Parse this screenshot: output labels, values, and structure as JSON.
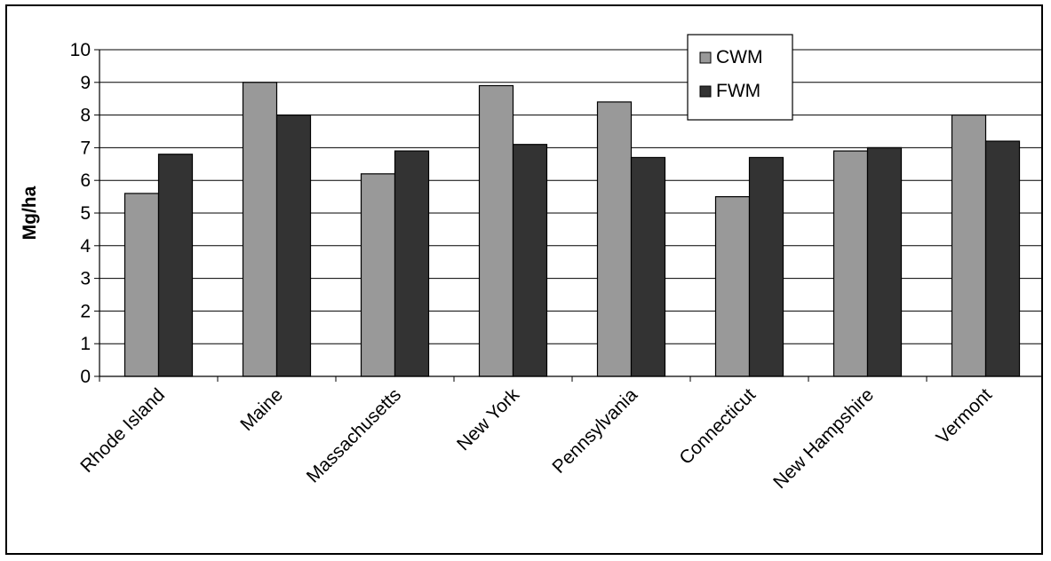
{
  "chart_data": {
    "type": "bar",
    "categories": [
      "Rhode Island",
      "Maine",
      "Massachusetts",
      "New York",
      "Pennsylvania",
      "Connecticut",
      "New Hampshire",
      "Vermont"
    ],
    "series": [
      {
        "name": "CWM",
        "values": [
          5.6,
          9.0,
          6.2,
          8.9,
          8.4,
          5.5,
          6.9,
          8.0
        ],
        "color": "#999999"
      },
      {
        "name": "FWM",
        "values": [
          6.8,
          8.0,
          6.9,
          7.1,
          6.7,
          6.7,
          7.0,
          7.2
        ],
        "color": "#333333"
      }
    ],
    "title": "",
    "xlabel": "",
    "ylabel": "Mg/ha",
    "ylim": [
      0,
      10
    ],
    "yticks": [
      0,
      1,
      2,
      3,
      4,
      5,
      6,
      7,
      8,
      9,
      10
    ],
    "grid": true,
    "legend": "top-right"
  }
}
